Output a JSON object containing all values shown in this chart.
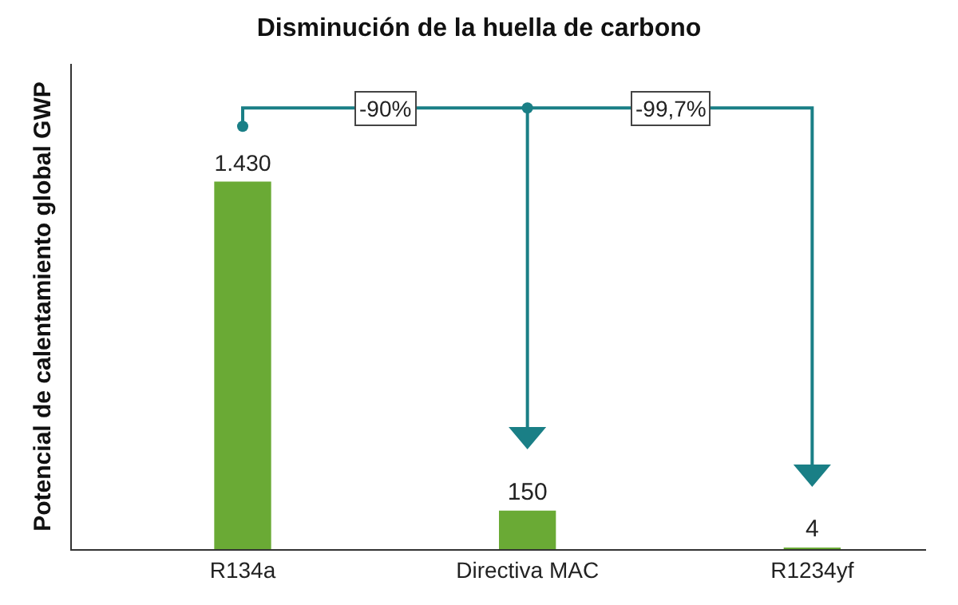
{
  "chart_data": {
    "type": "bar",
    "title": "Disminución de la huella de carbono",
    "ylabel": "Potencial de calentamiento global GWP",
    "categories": [
      "R134a",
      "Directiva MAC",
      "R1234yf"
    ],
    "values": [
      1430,
      150,
      4
    ],
    "value_labels": [
      "1.430",
      "150",
      "4"
    ],
    "color": "#6aaa35",
    "annotations": [
      "-90%",
      "-99,7%"
    ],
    "legend": false,
    "tick_labels": "x"
  }
}
